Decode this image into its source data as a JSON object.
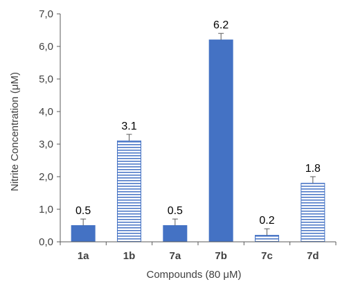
{
  "chart_data": {
    "type": "bar",
    "categories": [
      "1a",
      "1b",
      "7a",
      "7b",
      "7c",
      "7d"
    ],
    "values": [
      0.5,
      3.1,
      0.5,
      6.2,
      0.2,
      1.8
    ],
    "error_plus": [
      0.2,
      0.2,
      0.2,
      0.2,
      0.2,
      0.2
    ],
    "data_labels": [
      "0.5",
      "3.1",
      "0.5",
      "6.2",
      "0.2",
      "1.8"
    ],
    "fill_styles": [
      "solid",
      "striped",
      "solid",
      "solid",
      "striped",
      "striped"
    ],
    "ylim": [
      0,
      7
    ],
    "yticks": [
      0,
      1,
      2,
      3,
      4,
      5,
      6,
      7
    ],
    "ytick_labels": [
      "0,0",
      "1,0",
      "2,0",
      "3,0",
      "4,0",
      "5,0",
      "6,0",
      "7,0"
    ],
    "xlabel": "Compounds (80 μM)",
    "ylabel": "Nitrite Concentration (μM)",
    "grid": false,
    "colors": {
      "bar": "#4472C4",
      "axis": "#595959",
      "text": "#404040"
    }
  }
}
